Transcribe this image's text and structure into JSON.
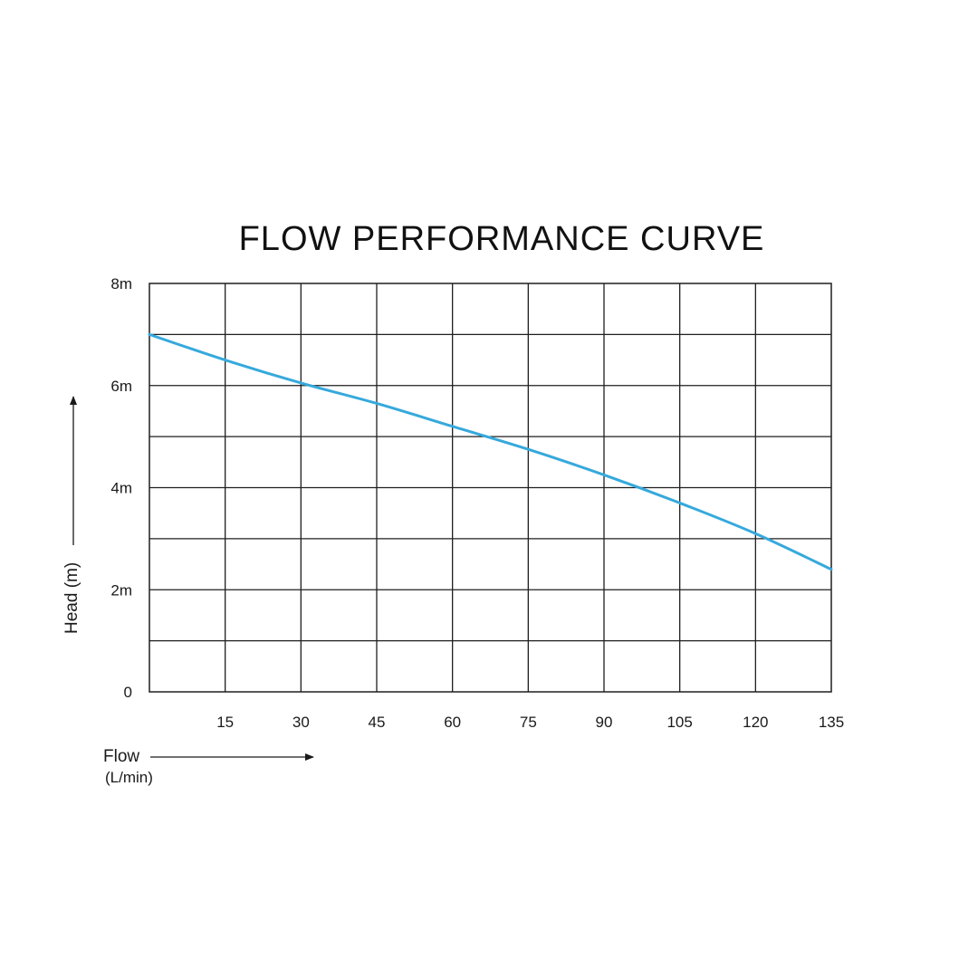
{
  "chart_data": {
    "type": "line",
    "title": "FLOW PERFORMANCE CURVE",
    "xlabel": "Flow",
    "xunit": "(L/min)",
    "ylabel": "Head (m)",
    "xlim": [
      0,
      135
    ],
    "ylim": [
      0,
      8
    ],
    "grid": true,
    "legend": "none",
    "x_ticks": [
      {
        "value": 15,
        "label": "15"
      },
      {
        "value": 30,
        "label": "30"
      },
      {
        "value": 45,
        "label": "45"
      },
      {
        "value": 60,
        "label": "60"
      },
      {
        "value": 75,
        "label": "75"
      },
      {
        "value": 90,
        "label": "90"
      },
      {
        "value": 105,
        "label": "105"
      },
      {
        "value": 120,
        "label": "120"
      },
      {
        "value": 135,
        "label": "135"
      }
    ],
    "y_ticks": [
      {
        "value": 0,
        "label": "0"
      },
      {
        "value": 2,
        "label": "2m"
      },
      {
        "value": 4,
        "label": "4m"
      },
      {
        "value": 6,
        "label": "6m"
      },
      {
        "value": 8,
        "label": "8m"
      }
    ],
    "x_gridlines": [
      15,
      30,
      45,
      60,
      75,
      90,
      105,
      120
    ],
    "y_gridlines": [
      1,
      2,
      3,
      4,
      5,
      6,
      7
    ],
    "series": [
      {
        "color": "#35A9DC",
        "x": [
          0,
          15,
          30,
          45,
          60,
          75,
          90,
          105,
          120,
          135
        ],
        "y": [
          7.0,
          6.5,
          6.05,
          5.65,
          5.2,
          4.75,
          4.25,
          3.7,
          3.1,
          2.4
        ]
      }
    ]
  }
}
